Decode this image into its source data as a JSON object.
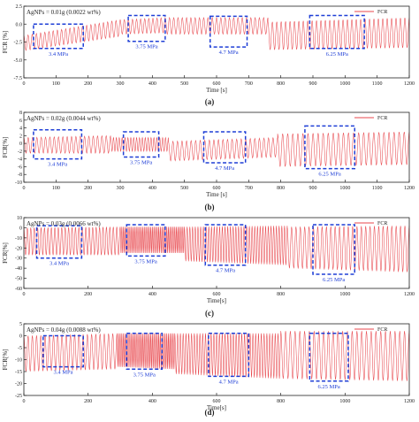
{
  "colors": {
    "signal": "#e8474d",
    "box": "#1f3fd6",
    "axis": "#222222"
  },
  "chart_data": [
    {
      "type": "line",
      "panel_label": "(a)",
      "annotation": "AgNPs = 0.01g (0.0022 wt%)",
      "legend": "FCR",
      "legend_position": "top-right",
      "xlabel": "Time [s]",
      "ylabel": "FCR [%]",
      "xlim": [
        0,
        1200
      ],
      "ylim": [
        -7.5,
        2.5
      ],
      "xticks": [
        "0",
        "100",
        "200",
        "300",
        "400",
        "500",
        "600",
        "700",
        "800",
        "900",
        "1000",
        "1100",
        "1200"
      ],
      "yticks": [
        "2.5",
        "0.0",
        "-2.5",
        "-5.0",
        "-7.5"
      ],
      "grid": false,
      "segments": [
        {
          "t_start": 0,
          "t_end": 300,
          "cycles": 23,
          "upper_start": -1.6,
          "upper_end": 0.6,
          "lower_start": -3.7,
          "lower_end": -1.7
        },
        {
          "t_start": 300,
          "t_end": 440,
          "cycles": 11,
          "upper_start": 0.6,
          "upper_end": 0.9,
          "lower_start": -1.4,
          "lower_end": -1.2
        },
        {
          "t_start": 440,
          "t_end": 760,
          "cycles": 24,
          "upper_start": 0.9,
          "upper_end": 0.9,
          "lower_start": -1.4,
          "lower_end": -1.4
        },
        {
          "t_start": 760,
          "t_end": 1200,
          "cycles": 32,
          "upper_start": 0.3,
          "upper_end": 0.9,
          "lower_start": -3.6,
          "lower_end": -3.3
        }
      ],
      "boxes": [
        {
          "label": "3.4 MPa",
          "x0": 30,
          "x1": 185,
          "y0": 0.0,
          "y1": -3.4
        },
        {
          "label": "3.75 MPa",
          "x0": 325,
          "x1": 440,
          "y0": 1.2,
          "y1": -2.4
        },
        {
          "label": "4.7 MPa",
          "x0": 580,
          "x1": 695,
          "y0": 1.1,
          "y1": -3.2
        },
        {
          "label": "6.25 MPa",
          "x0": 890,
          "x1": 1060,
          "y0": 1.2,
          "y1": -3.4
        }
      ]
    },
    {
      "type": "line",
      "panel_label": "(b)",
      "annotation": "AgNPs = 0.02g (0.0044 wt%)",
      "legend": "FCR",
      "legend_position": "top-right",
      "xlabel": "Time [s]",
      "ylabel": "FCR[%]",
      "xlim": [
        0,
        1200
      ],
      "ylim": [
        -10,
        8
      ],
      "xticks": [
        "0",
        "100",
        "200",
        "300",
        "400",
        "500",
        "600",
        "700",
        "800",
        "900",
        "1000",
        "1100",
        "1200"
      ],
      "yticks": [
        "8",
        "6",
        "4",
        "2",
        "0",
        "-2",
        "-4",
        "-6",
        "-8",
        "-10"
      ],
      "grid": false,
      "segments": [
        {
          "t_start": 0,
          "t_end": 270,
          "cycles": 20,
          "upper_start": 1.5,
          "upper_end": 2.0,
          "lower_start": -2.5,
          "lower_end": -2.5
        },
        {
          "t_start": 270,
          "t_end": 450,
          "cycles": 20,
          "upper_start": 1.5,
          "upper_end": 1.5,
          "lower_start": -2.0,
          "lower_end": -2.0
        },
        {
          "t_start": 450,
          "t_end": 790,
          "cycles": 24,
          "upper_start": 0.5,
          "upper_end": 1.5,
          "lower_start": -4.5,
          "lower_end": -3.5
        },
        {
          "t_start": 790,
          "t_end": 1200,
          "cycles": 26,
          "upper_start": 2.5,
          "upper_end": 3.0,
          "lower_start": -6.0,
          "lower_end": -5.5
        }
      ],
      "boxes": [
        {
          "label": "3.4 MPa",
          "x0": 30,
          "x1": 180,
          "y0": 3.5,
          "y1": -4.0
        },
        {
          "label": "3.75 MPa",
          "x0": 310,
          "x1": 420,
          "y0": 3.0,
          "y1": -3.5
        },
        {
          "label": "4.7 MPa",
          "x0": 560,
          "x1": 690,
          "y0": 3.0,
          "y1": -5.0
        },
        {
          "label": "6.25 MPa",
          "x0": 875,
          "x1": 1030,
          "y0": 4.5,
          "y1": -6.5
        }
      ]
    },
    {
      "type": "line",
      "panel_label": "(c)",
      "annotation": "AgNPs = 0.03g (0.0066 wt%)",
      "legend": "FCR",
      "legend_position": "top-right",
      "xlabel": "Time[s]",
      "ylabel": "FCR[%]",
      "xlim": [
        0,
        1200
      ],
      "ylim": [
        -60,
        10
      ],
      "xticks": [
        "0",
        "200",
        "400",
        "600",
        "800",
        "1000",
        "1200"
      ],
      "yticks": [
        "10",
        "0",
        "-10",
        "-20",
        "-30",
        "-40",
        "-50",
        "-60"
      ],
      "grid": false,
      "segments": [
        {
          "t_start": 0,
          "t_end": 300,
          "cycles": 28,
          "upper_start": 0,
          "upper_end": 1,
          "lower_start": -27,
          "lower_end": -27
        },
        {
          "t_start": 300,
          "t_end": 500,
          "cycles": 40,
          "upper_start": 1,
          "upper_end": 1,
          "lower_start": -25,
          "lower_end": -25
        },
        {
          "t_start": 500,
          "t_end": 820,
          "cycles": 38,
          "upper_start": 1,
          "upper_end": 2,
          "lower_start": -33,
          "lower_end": -37
        },
        {
          "t_start": 820,
          "t_end": 1200,
          "cycles": 28,
          "upper_start": 1,
          "upper_end": 2,
          "lower_start": -40,
          "lower_end": -44
        }
      ],
      "boxes": [
        {
          "label": "3.4 MPa",
          "x0": 40,
          "x1": 180,
          "y0": 2,
          "y1": -30
        },
        {
          "label": "3.75 MPa",
          "x0": 320,
          "x1": 440,
          "y0": 3,
          "y1": -28
        },
        {
          "label": "4.7 MPa",
          "x0": 565,
          "x1": 690,
          "y0": 3,
          "y1": -37
        },
        {
          "label": "6.25 MPa",
          "x0": 900,
          "x1": 1030,
          "y0": 3,
          "y1": -46
        }
      ]
    },
    {
      "type": "line",
      "panel_label": "(d)",
      "annotation": "AgNPs = 0.04g (0.0088 wt%)",
      "legend": "FCR",
      "legend_position": "top-right",
      "xlabel": "Time[s]",
      "ylabel": "FCR[%]",
      "xlim": [
        0,
        1200
      ],
      "ylim": [
        -25,
        5
      ],
      "xticks": [
        "0",
        "200",
        "400",
        "600",
        "800",
        "1000",
        "1200"
      ],
      "yticks": [
        "5",
        "0",
        "-5",
        "-10",
        "-15",
        "-20",
        "-25"
      ],
      "grid": false,
      "segments": [
        {
          "t_start": 0,
          "t_end": 290,
          "cycles": 22,
          "upper_start": 0,
          "upper_end": 1,
          "lower_start": -15,
          "lower_end": -14
        },
        {
          "t_start": 290,
          "t_end": 470,
          "cycles": 36,
          "upper_start": 1,
          "upper_end": 1,
          "lower_start": -13,
          "lower_end": -14
        },
        {
          "t_start": 470,
          "t_end": 800,
          "cycles": 38,
          "upper_start": 1,
          "upper_end": 1,
          "lower_start": -16,
          "lower_end": -18
        },
        {
          "t_start": 800,
          "t_end": 1200,
          "cycles": 27,
          "upper_start": 2,
          "upper_end": 2,
          "lower_start": -18,
          "lower_end": -19
        }
      ],
      "boxes": [
        {
          "label": "3.4 MPa",
          "x0": 60,
          "x1": 185,
          "y0": 0,
          "y1": -13
        },
        {
          "label": "3.75 MPa",
          "x0": 320,
          "x1": 430,
          "y0": 1,
          "y1": -14
        },
        {
          "label": "4.7 MPa",
          "x0": 575,
          "x1": 700,
          "y0": 1,
          "y1": -17
        },
        {
          "label": "6.25 MPa",
          "x0": 890,
          "x1": 1010,
          "y0": 1,
          "y1": -19
        }
      ]
    }
  ]
}
